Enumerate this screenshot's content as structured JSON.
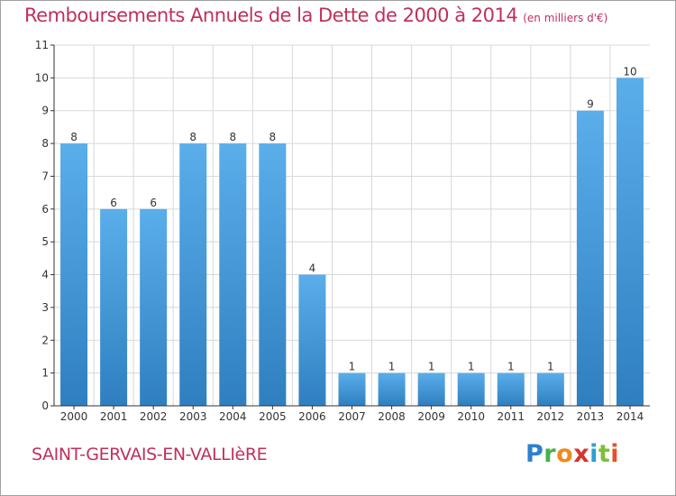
{
  "header": {
    "title": "Remboursements Annuels de la Dette de 2000 à 2014",
    "subtitle": "(en milliers d'€)"
  },
  "footer": {
    "commune": "SAINT-GERVAIS-EN-VALLIèRE",
    "logo": [
      "P",
      "r",
      "o",
      "x",
      "i",
      "t",
      "i"
    ]
  },
  "colors": {
    "title": "#c0305a",
    "bar_top": "#5aaeea",
    "bar_bottom": "#2f7fc0",
    "grid": "#d8d8d8",
    "axis": "#333333"
  },
  "chart_data": {
    "type": "bar",
    "title": "Remboursements Annuels de la Dette de 2000 à 2014",
    "subtitle": "(en milliers d'€)",
    "categories": [
      "2000",
      "2001",
      "2002",
      "2003",
      "2004",
      "2005",
      "2006",
      "2007",
      "2008",
      "2009",
      "2010",
      "2011",
      "2012",
      "2013",
      "2014"
    ],
    "values": [
      8,
      6,
      6,
      8,
      8,
      8,
      4,
      1,
      1,
      1,
      1,
      1,
      1,
      9,
      10
    ],
    "ylim": [
      0,
      11
    ],
    "yticks": [
      0,
      1,
      2,
      3,
      4,
      5,
      6,
      7,
      8,
      9,
      10,
      11
    ],
    "grid": true,
    "xlabel": "",
    "ylabel": ""
  }
}
